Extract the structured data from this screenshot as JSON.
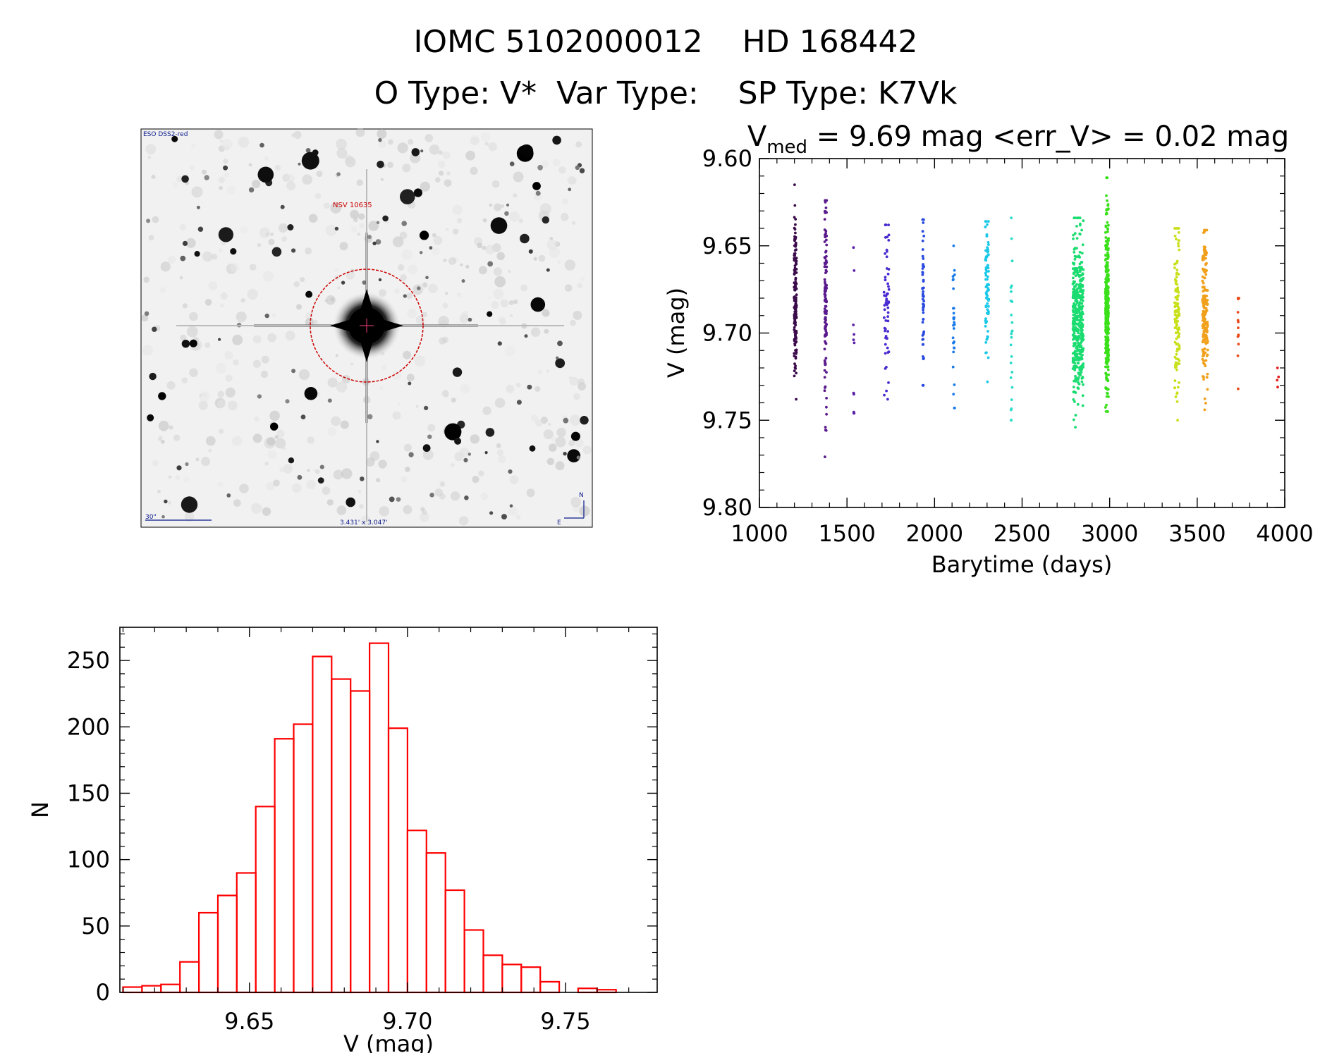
{
  "header": {
    "title_line1": "IOMC 5102000012    HD 168442",
    "title_line2": "O Type: V*  Var Type:    SP Type: K7Vk"
  },
  "finder_chart": {
    "survey_label": "ESO DSS2-red",
    "object_label": "NSV 10635",
    "scale_label": "30\"",
    "fov_label": "3.431' x 3.047'",
    "north_label": "N",
    "east_label": "E",
    "marker_color": "#cc0000"
  },
  "chart_data": [
    {
      "type": "scatter",
      "title_symbol": "V",
      "title_subscript": "med",
      "title_rest": " = 9.69 mag <err_V> = 0.02 mag",
      "xlabel": "Barytime (days)",
      "ylabel": "V (mag)",
      "xlim": [
        1000,
        4000
      ],
      "ylim": [
        9.8,
        9.6
      ],
      "y_inverted": true,
      "xticks": [
        "1000",
        "1500",
        "2000",
        "2500",
        "3000",
        "3500",
        "4000"
      ],
      "yticks": [
        "9.60",
        "9.65",
        "9.70",
        "9.75",
        "9.80"
      ],
      "groups": [
        {
          "center": 1205,
          "width": 14,
          "n": 150,
          "ymin": 9.615,
          "ymax": 9.738,
          "mean": 9.68,
          "sd": 0.025,
          "color": "#3a0a4a"
        },
        {
          "center": 1378,
          "width": 12,
          "n": 120,
          "ymin": 9.624,
          "ymax": 9.771,
          "mean": 9.685,
          "sd": 0.03,
          "color": "#5a1a8c"
        },
        {
          "center": 1540,
          "width": 8,
          "n": 12,
          "ymin": 9.651,
          "ymax": 9.746,
          "mean": 9.71,
          "sd": 0.03,
          "color": "#5a1fa8"
        },
        {
          "center": 1725,
          "width": 30,
          "n": 60,
          "ymin": 9.638,
          "ymax": 9.738,
          "mean": 9.685,
          "sd": 0.025,
          "color": "#4a2ad0"
        },
        {
          "center": 1935,
          "width": 8,
          "n": 55,
          "ymin": 9.635,
          "ymax": 9.73,
          "mean": 9.68,
          "sd": 0.025,
          "color": "#2a4ae0"
        },
        {
          "center": 2110,
          "width": 10,
          "n": 30,
          "ymin": 9.65,
          "ymax": 9.743,
          "mean": 9.695,
          "sd": 0.025,
          "color": "#1a7ae8"
        },
        {
          "center": 2300,
          "width": 20,
          "n": 80,
          "ymin": 9.636,
          "ymax": 9.728,
          "mean": 9.67,
          "sd": 0.02,
          "color": "#1ac8e8"
        },
        {
          "center": 2440,
          "width": 8,
          "n": 25,
          "ymin": 9.634,
          "ymax": 9.75,
          "mean": 9.695,
          "sd": 0.03,
          "color": "#2adcc8"
        },
        {
          "center": 2820,
          "width": 60,
          "n": 420,
          "ymin": 9.634,
          "ymax": 9.754,
          "mean": 9.69,
          "sd": 0.022,
          "color": "#1adc70"
        },
        {
          "center": 2985,
          "width": 18,
          "n": 330,
          "ymin": 9.611,
          "ymax": 9.745,
          "mean": 9.685,
          "sd": 0.025,
          "color": "#3ae01a"
        },
        {
          "center": 3385,
          "width": 28,
          "n": 130,
          "ymin": 9.64,
          "ymax": 9.75,
          "mean": 9.69,
          "sd": 0.022,
          "color": "#c8e01a"
        },
        {
          "center": 3545,
          "width": 30,
          "n": 190,
          "ymin": 9.641,
          "ymax": 9.744,
          "mean": 9.69,
          "sd": 0.02,
          "color": "#f0a01a"
        },
        {
          "center": 3735,
          "width": 6,
          "n": 14,
          "ymin": 9.68,
          "ymax": 9.732,
          "mean": 9.7,
          "sd": 0.015,
          "color": "#ea4a1a"
        },
        {
          "center": 3960,
          "width": 10,
          "n": 4,
          "ymin": 9.72,
          "ymax": 9.731,
          "mean": 9.725,
          "sd": 0.004,
          "color": "#e02020"
        }
      ]
    },
    {
      "type": "bar",
      "xlabel": "V (mag)",
      "ylabel": "N",
      "xlim": [
        9.609,
        9.779
      ],
      "ylim": [
        0,
        275
      ],
      "xticks": [
        "9.65",
        "9.70",
        "9.75"
      ],
      "yticks": [
        "0",
        "50",
        "100",
        "150",
        "200",
        "250"
      ],
      "bin_width": 0.006,
      "bin_start": 9.61,
      "counts": [
        4,
        5,
        6,
        23,
        60,
        73,
        90,
        140,
        191,
        202,
        253,
        236,
        227,
        263,
        199,
        122,
        105,
        77,
        47,
        28,
        21,
        19,
        8,
        0,
        3,
        2
      ],
      "color": "#ff0000"
    }
  ]
}
